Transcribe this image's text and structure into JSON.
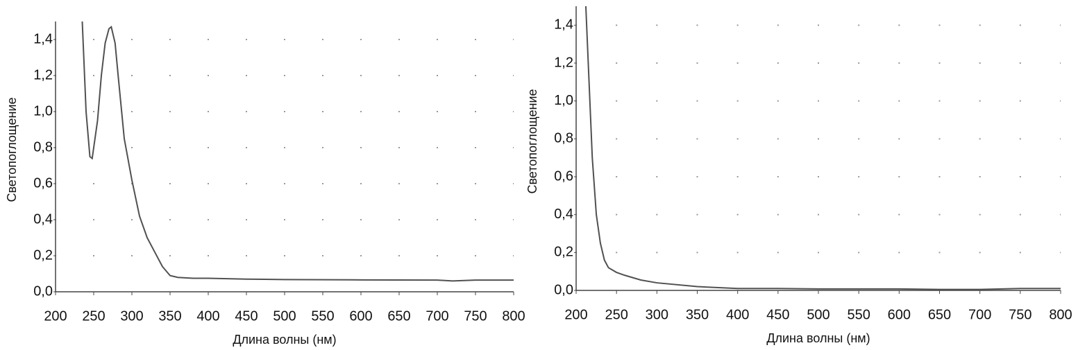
{
  "chart_data": [
    {
      "type": "line",
      "xlabel": "Длина волны (нм)",
      "ylabel": "Светопоглощение",
      "color": "#505050",
      "grid": true,
      "x": [
        235,
        240,
        245,
        248,
        255,
        260,
        265,
        270,
        273,
        278,
        282,
        290,
        300,
        310,
        320,
        330,
        340,
        350,
        360,
        380,
        400,
        450,
        500,
        600,
        700,
        720,
        750,
        800
      ],
      "values": [
        1.5,
        1.0,
        0.75,
        0.74,
        0.95,
        1.2,
        1.38,
        1.46,
        1.47,
        1.38,
        1.2,
        0.85,
        0.62,
        0.42,
        0.3,
        0.22,
        0.14,
        0.09,
        0.08,
        0.075,
        0.075,
        0.07,
        0.068,
        0.066,
        0.065,
        0.06,
        0.065,
        0.065
      ],
      "xlim": [
        200,
        800
      ],
      "xticks": [
        200,
        250,
        300,
        350,
        400,
        450,
        500,
        550,
        600,
        650,
        700,
        750,
        800
      ],
      "ylim": [
        0,
        1.5
      ],
      "yticks": [
        {
          "value": 0,
          "label": "0,0"
        },
        {
          "value": 0.2,
          "label": "0,2"
        },
        {
          "value": 0.4,
          "label": "0,4"
        },
        {
          "value": 0.6,
          "label": "0,6"
        },
        {
          "value": 0.8,
          "label": "0,8"
        },
        {
          "value": 1.0,
          "label": "1,0"
        },
        {
          "value": 1.2,
          "label": "1,2"
        },
        {
          "value": 1.4,
          "label": "1,4"
        }
      ]
    },
    {
      "type": "line",
      "xlabel": "Длина волны (нм)",
      "ylabel": "Светопоглощение",
      "color": "#505050",
      "grid": true,
      "x": [
        212,
        215,
        220,
        225,
        230,
        235,
        240,
        250,
        260,
        280,
        300,
        350,
        400,
        450,
        500,
        600,
        650,
        700,
        750,
        800
      ],
      "values": [
        1.5,
        1.2,
        0.7,
        0.4,
        0.25,
        0.16,
        0.12,
        0.095,
        0.08,
        0.055,
        0.04,
        0.02,
        0.01,
        0.01,
        0.008,
        0.008,
        0.005,
        0.005,
        0.01,
        0.01
      ],
      "xlim": [
        200,
        800
      ],
      "xticks": [
        200,
        250,
        300,
        350,
        400,
        450,
        500,
        550,
        600,
        650,
        700,
        750,
        800
      ],
      "ylim": [
        0,
        1.5
      ],
      "yticks": [
        {
          "value": 0,
          "label": "0,0"
        },
        {
          "value": 0.2,
          "label": "0,2"
        },
        {
          "value": 0.4,
          "label": "0,4"
        },
        {
          "value": 0.6,
          "label": "0,6"
        },
        {
          "value": 0.8,
          "label": "0,8"
        },
        {
          "value": 1.0,
          "label": "1,0"
        },
        {
          "value": 1.2,
          "label": "1,2"
        },
        {
          "value": 1.4,
          "label": "1,4"
        }
      ]
    }
  ]
}
